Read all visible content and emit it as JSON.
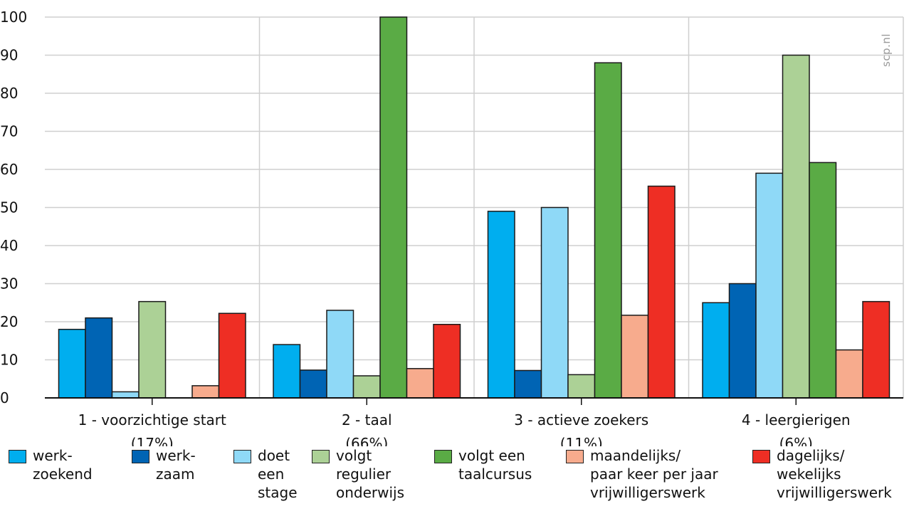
{
  "chart_data": {
    "type": "bar",
    "title": "",
    "xlabel": "",
    "ylabel": "",
    "ylim": [
      0,
      100
    ],
    "yticks": [
      0,
      10,
      20,
      30,
      40,
      50,
      60,
      70,
      80,
      90,
      100
    ],
    "grid": true,
    "legend_position": "bottom",
    "categories": [
      "1 - voorzichtige start\n(17%)",
      "2 - taal\n(66%)",
      "3 - actieve zoekers\n(11%)",
      "4 - leergierigen\n(6%)"
    ],
    "series": [
      {
        "name": "werk-\nzoekend",
        "color": "#00aeef",
        "values": [
          18,
          14,
          49,
          25
        ]
      },
      {
        "name": "werk-\nzaam",
        "color": "#0064b4",
        "values": [
          21,
          7.3,
          7.2,
          30
        ]
      },
      {
        "name": "doet\neen\nstage",
        "color": "#8fd9f7",
        "values": [
          1.6,
          23,
          50,
          59
        ]
      },
      {
        "name": "volgt\nregulier\nonderwijs",
        "color": "#acd196",
        "values": [
          25.3,
          5.8,
          6.1,
          90
        ]
      },
      {
        "name": "volgt een\ntaalcursus",
        "color": "#5aab45",
        "values": [
          0,
          100,
          88,
          61.8
        ]
      },
      {
        "name": "maandelijks/\npaar keer per jaar\nvrijwilligerswerk",
        "color": "#f7ab8d",
        "values": [
          3.2,
          7.7,
          21.7,
          12.6
        ]
      },
      {
        "name": "dagelijks/\nwekelijks\nvrijwilligerswerk",
        "color": "#ee2e24",
        "values": [
          22.2,
          19.3,
          55.6,
          25.3
        ]
      }
    ],
    "watermark": "scp.nl"
  }
}
